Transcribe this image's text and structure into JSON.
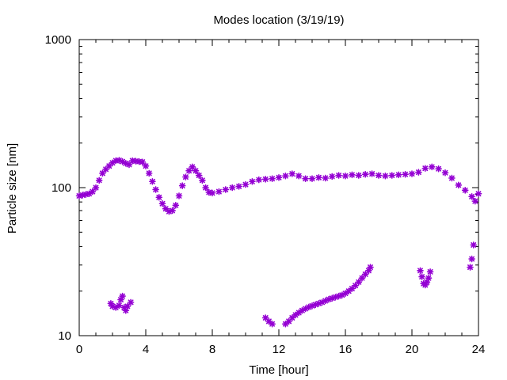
{
  "chart_data": {
    "type": "scatter",
    "title": "Modes location (3/19/19)",
    "xlabel": "Time [hour]",
    "ylabel": "Particle size [nm]",
    "xlim": [
      0,
      24
    ],
    "ylim": [
      10,
      1000
    ],
    "yscale": "log",
    "xticks": [
      0,
      4,
      8,
      12,
      16,
      20,
      24
    ],
    "xtick_labels": [
      "0",
      "4",
      "8",
      "12",
      "16",
      "20",
      "24"
    ],
    "yticks": [
      10,
      100,
      1000
    ],
    "ytick_labels": [
      "10",
      "100",
      "1000"
    ],
    "marker": "asterisk",
    "grid": false,
    "color": "#9400d3",
    "series": [
      {
        "values_description": "upper mode",
        "points": [
          [
            0.0,
            88
          ],
          [
            0.2,
            89
          ],
          [
            0.4,
            90
          ],
          [
            0.6,
            91
          ],
          [
            0.8,
            94
          ],
          [
            1.0,
            100
          ],
          [
            1.2,
            112
          ],
          [
            1.4,
            125
          ],
          [
            1.6,
            133
          ],
          [
            1.8,
            140
          ],
          [
            2.0,
            147
          ],
          [
            2.2,
            152
          ],
          [
            2.4,
            153
          ],
          [
            2.6,
            150
          ],
          [
            2.8,
            146
          ],
          [
            3.0,
            143
          ],
          [
            3.2,
            152
          ],
          [
            3.4,
            151
          ],
          [
            3.6,
            150
          ],
          [
            3.8,
            149
          ],
          [
            4.0,
            140
          ],
          [
            4.2,
            125
          ],
          [
            4.4,
            110
          ],
          [
            4.6,
            97
          ],
          [
            4.8,
            86
          ],
          [
            5.0,
            78
          ],
          [
            5.2,
            72
          ],
          [
            5.4,
            69
          ],
          [
            5.6,
            70
          ],
          [
            5.8,
            76
          ],
          [
            6.0,
            88
          ],
          [
            6.2,
            103
          ],
          [
            6.4,
            118
          ],
          [
            6.6,
            130
          ],
          [
            6.8,
            138
          ],
          [
            7.0,
            130
          ],
          [
            7.2,
            121
          ],
          [
            7.4,
            112
          ],
          [
            7.6,
            100
          ],
          [
            7.8,
            93
          ],
          [
            8.0,
            92
          ],
          [
            8.4,
            94
          ],
          [
            8.8,
            97
          ],
          [
            9.2,
            100
          ],
          [
            9.6,
            102
          ],
          [
            10.0,
            105
          ],
          [
            10.4,
            110
          ],
          [
            10.8,
            113
          ],
          [
            11.2,
            114
          ],
          [
            11.6,
            115
          ],
          [
            12.0,
            117
          ],
          [
            12.4,
            120
          ],
          [
            12.8,
            124
          ],
          [
            13.2,
            120
          ],
          [
            13.6,
            115
          ],
          [
            14.0,
            115
          ],
          [
            14.4,
            117
          ],
          [
            14.8,
            116
          ],
          [
            15.2,
            119
          ],
          [
            15.6,
            121
          ],
          [
            16.0,
            120
          ],
          [
            16.4,
            122
          ],
          [
            16.8,
            121
          ],
          [
            17.2,
            123
          ],
          [
            17.6,
            124
          ],
          [
            18.0,
            121
          ],
          [
            18.4,
            120
          ],
          [
            18.8,
            121
          ],
          [
            19.2,
            122
          ],
          [
            19.6,
            123
          ],
          [
            20.0,
            124
          ],
          [
            20.4,
            127
          ],
          [
            20.8,
            135
          ],
          [
            21.2,
            138
          ],
          [
            21.6,
            134
          ],
          [
            22.0,
            126
          ],
          [
            22.4,
            116
          ],
          [
            22.8,
            104
          ],
          [
            23.2,
            96
          ],
          [
            23.6,
            87
          ],
          [
            23.8,
            81
          ],
          [
            24.0,
            91
          ]
        ]
      },
      {
        "values_description": "lower mode (cluster 1)",
        "points": [
          [
            1.9,
            16.5
          ],
          [
            2.0,
            15.8
          ],
          [
            2.2,
            15.5
          ],
          [
            2.4,
            16.0
          ],
          [
            2.5,
            17.5
          ],
          [
            2.6,
            18.5
          ],
          [
            2.7,
            15.5
          ],
          [
            2.8,
            14.8
          ],
          [
            2.9,
            15.8
          ],
          [
            3.1,
            16.8
          ]
        ]
      },
      {
        "values_description": "lower mode (cluster 2)",
        "points": [
          [
            11.2,
            13.2
          ],
          [
            11.4,
            12.5
          ],
          [
            11.6,
            12.0
          ],
          [
            12.4,
            12.0
          ],
          [
            12.6,
            12.5
          ],
          [
            12.8,
            13.2
          ],
          [
            13.0,
            13.8
          ],
          [
            13.2,
            14.3
          ],
          [
            13.4,
            14.8
          ],
          [
            13.6,
            15.2
          ],
          [
            13.8,
            15.6
          ],
          [
            14.0,
            15.9
          ],
          [
            14.2,
            16.2
          ],
          [
            14.4,
            16.5
          ],
          [
            14.6,
            16.8
          ],
          [
            14.8,
            17.2
          ],
          [
            15.0,
            17.6
          ],
          [
            15.2,
            17.9
          ],
          [
            15.4,
            18.2
          ],
          [
            15.6,
            18.5
          ],
          [
            15.8,
            18.8
          ],
          [
            16.0,
            19.3
          ],
          [
            16.2,
            20.0
          ],
          [
            16.4,
            20.8
          ],
          [
            16.6,
            21.8
          ],
          [
            16.8,
            23.0
          ],
          [
            17.0,
            24.5
          ],
          [
            17.2,
            26.0
          ],
          [
            17.4,
            27.5
          ],
          [
            17.5,
            29.0
          ]
        ]
      },
      {
        "values_description": "lower mode (cluster 3)",
        "points": [
          [
            20.5,
            27.5
          ],
          [
            20.6,
            25.0
          ],
          [
            20.7,
            22.5
          ],
          [
            20.8,
            22.0
          ],
          [
            20.9,
            23.0
          ],
          [
            21.0,
            24.5
          ],
          [
            21.1,
            27.0
          ]
        ]
      },
      {
        "values_description": "lower mode (cluster 4)",
        "points": [
          [
            23.5,
            29.0
          ],
          [
            23.6,
            33.0
          ],
          [
            23.7,
            41.0
          ]
        ]
      }
    ]
  }
}
